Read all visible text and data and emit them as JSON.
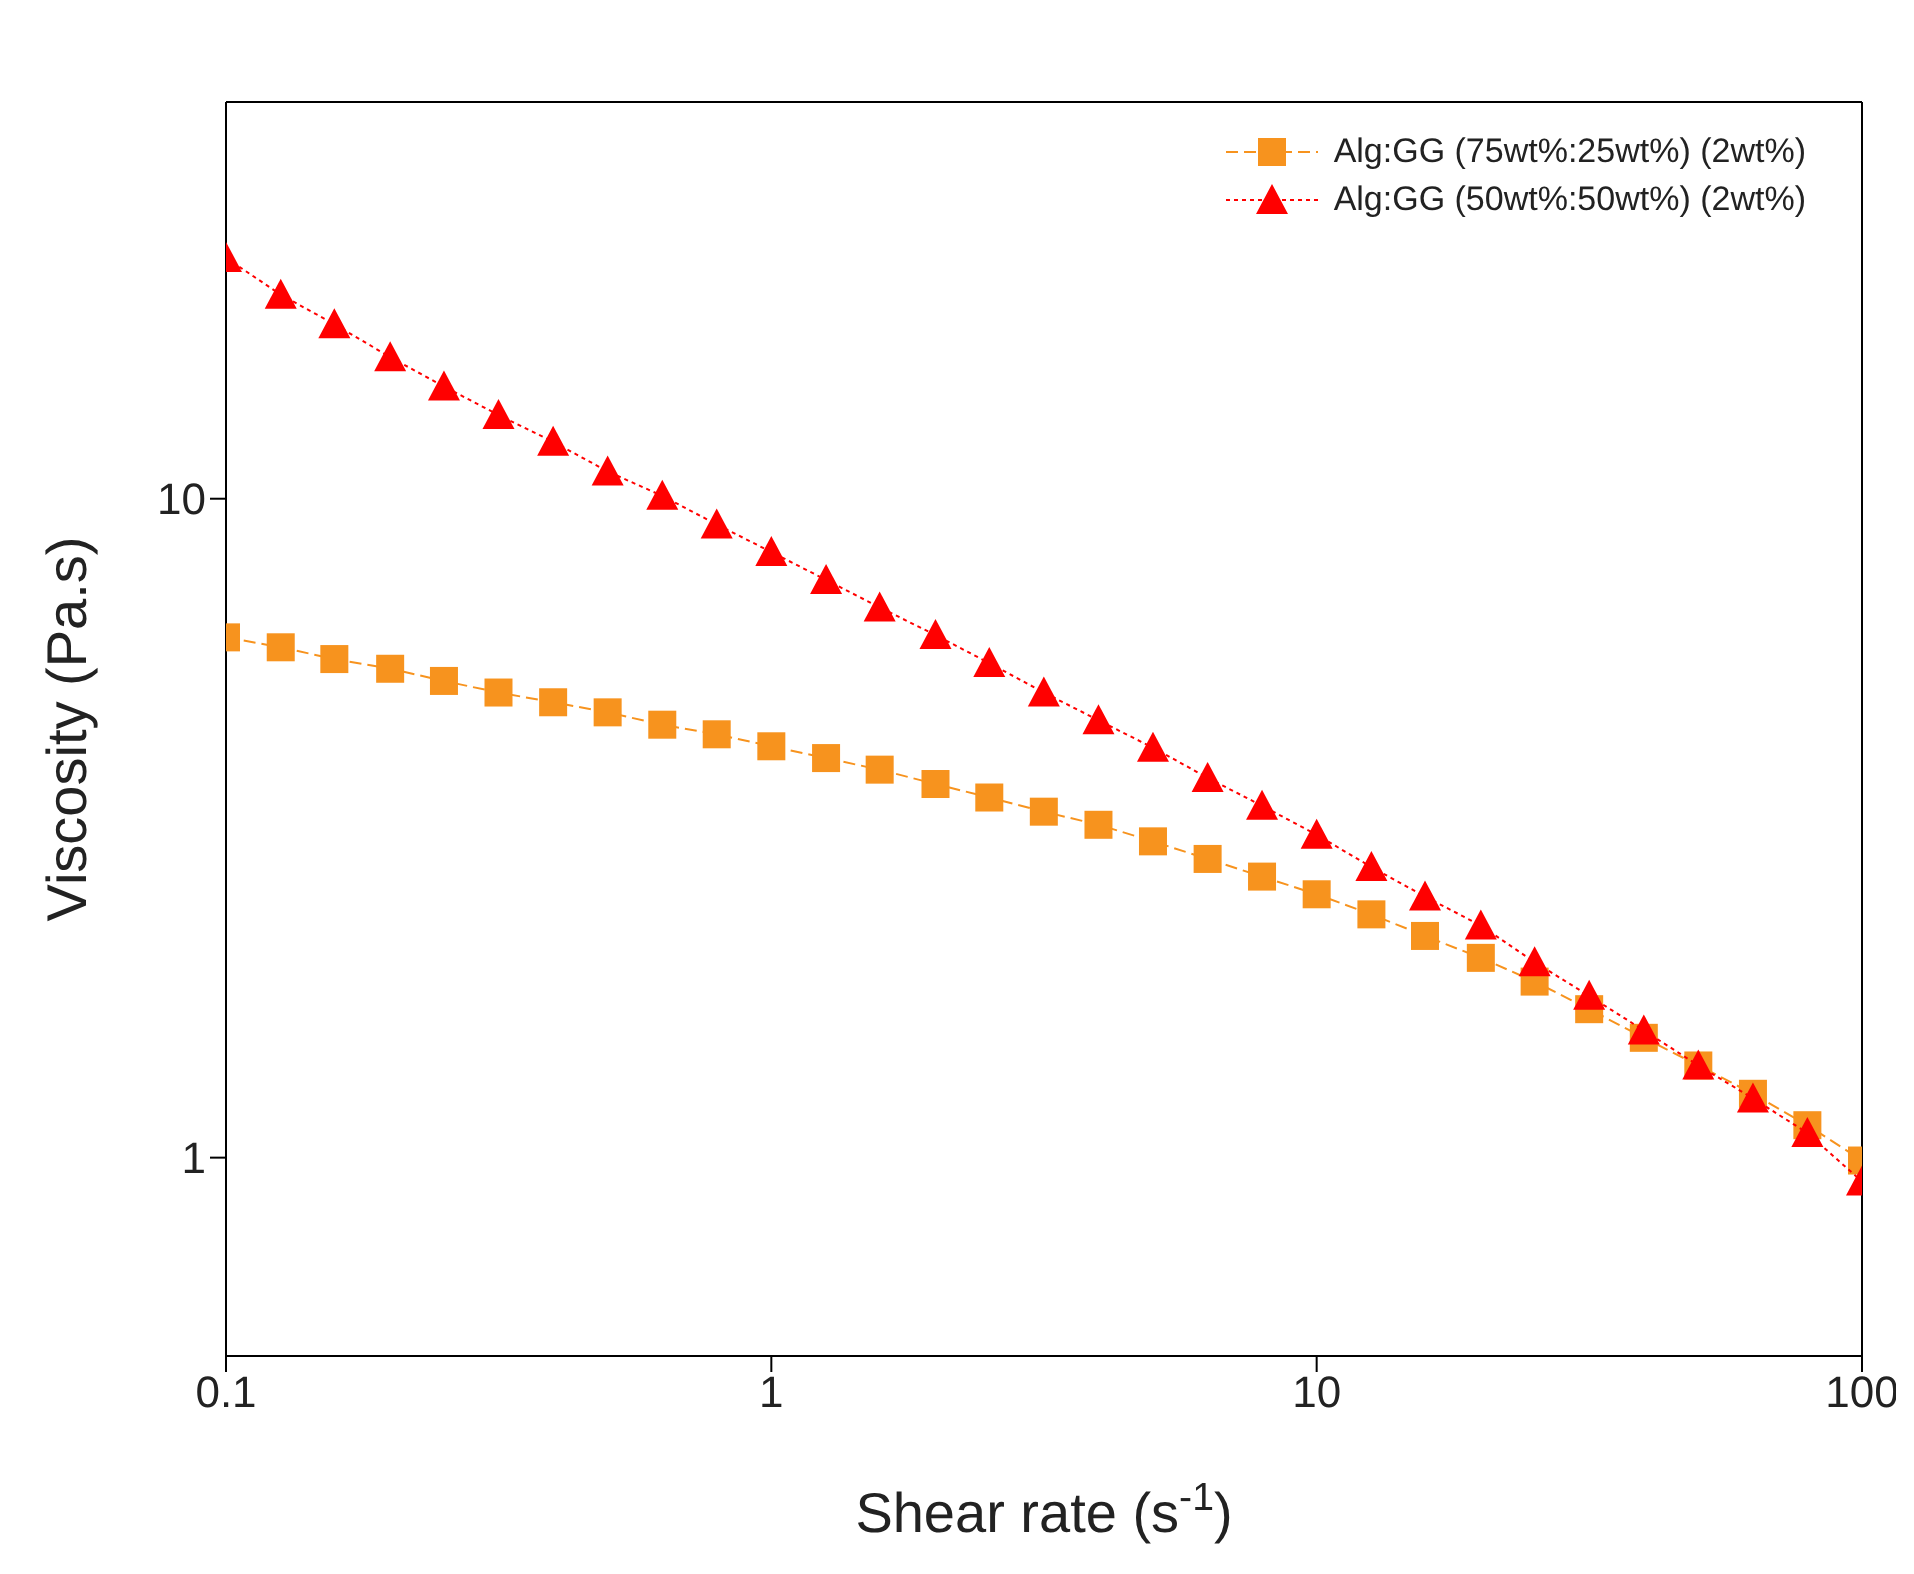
{
  "chart_data": {
    "type": "line",
    "xlabel": "Shear rate (s$^{-1}$)",
    "ylabel": "Viscosity (Pa.s)",
    "log": "xy",
    "xlim": [
      0.1,
      100
    ],
    "xticks": [
      0.1,
      1,
      10,
      100
    ],
    "ylim": [
      0.5,
      40
    ],
    "yticks": [
      1,
      10
    ],
    "grid": false,
    "legend": "top right",
    "x": [
      0.1,
      0.126,
      0.158,
      0.2,
      0.251,
      0.316,
      0.398,
      0.501,
      0.631,
      0.794,
      1,
      1.26,
      1.58,
      2,
      2.51,
      3.16,
      3.98,
      5.01,
      6.31,
      7.94,
      10,
      12.6,
      15.8,
      20,
      25.1,
      31.6,
      39.8,
      50.1,
      63.1,
      79.4,
      100
    ],
    "series": [
      {
        "name": "Alg:GG (75wt%:25wt%) (2wt%)",
        "color": "#f7931e",
        "marker": "square",
        "line_style": "dashed",
        "values": [
          6.16,
          5.95,
          5.71,
          5.52,
          5.29,
          5.08,
          4.91,
          4.74,
          4.54,
          4.39,
          4.21,
          4.04,
          3.88,
          3.69,
          3.52,
          3.35,
          3.2,
          3.02,
          2.84,
          2.67,
          2.51,
          2.34,
          2.17,
          2.01,
          1.85,
          1.68,
          1.52,
          1.38,
          1.25,
          1.12,
          0.99
        ]
      },
      {
        "name": "Alg:GG (50wt%:50wt%) (2wt%)",
        "color": "#ff0000",
        "marker": "triangle",
        "line_style": "dotted",
        "values": [
          23.2,
          20.4,
          18.4,
          16.4,
          14.8,
          13.4,
          12.2,
          11,
          10.1,
          9.14,
          8.3,
          7.53,
          6.84,
          6.21,
          5.63,
          5.08,
          4.61,
          4.19,
          3.77,
          3.42,
          3.09,
          2.76,
          2.49,
          2.25,
          1.98,
          1.76,
          1.56,
          1.38,
          1.23,
          1.09,
          0.92
        ]
      }
    ]
  }
}
